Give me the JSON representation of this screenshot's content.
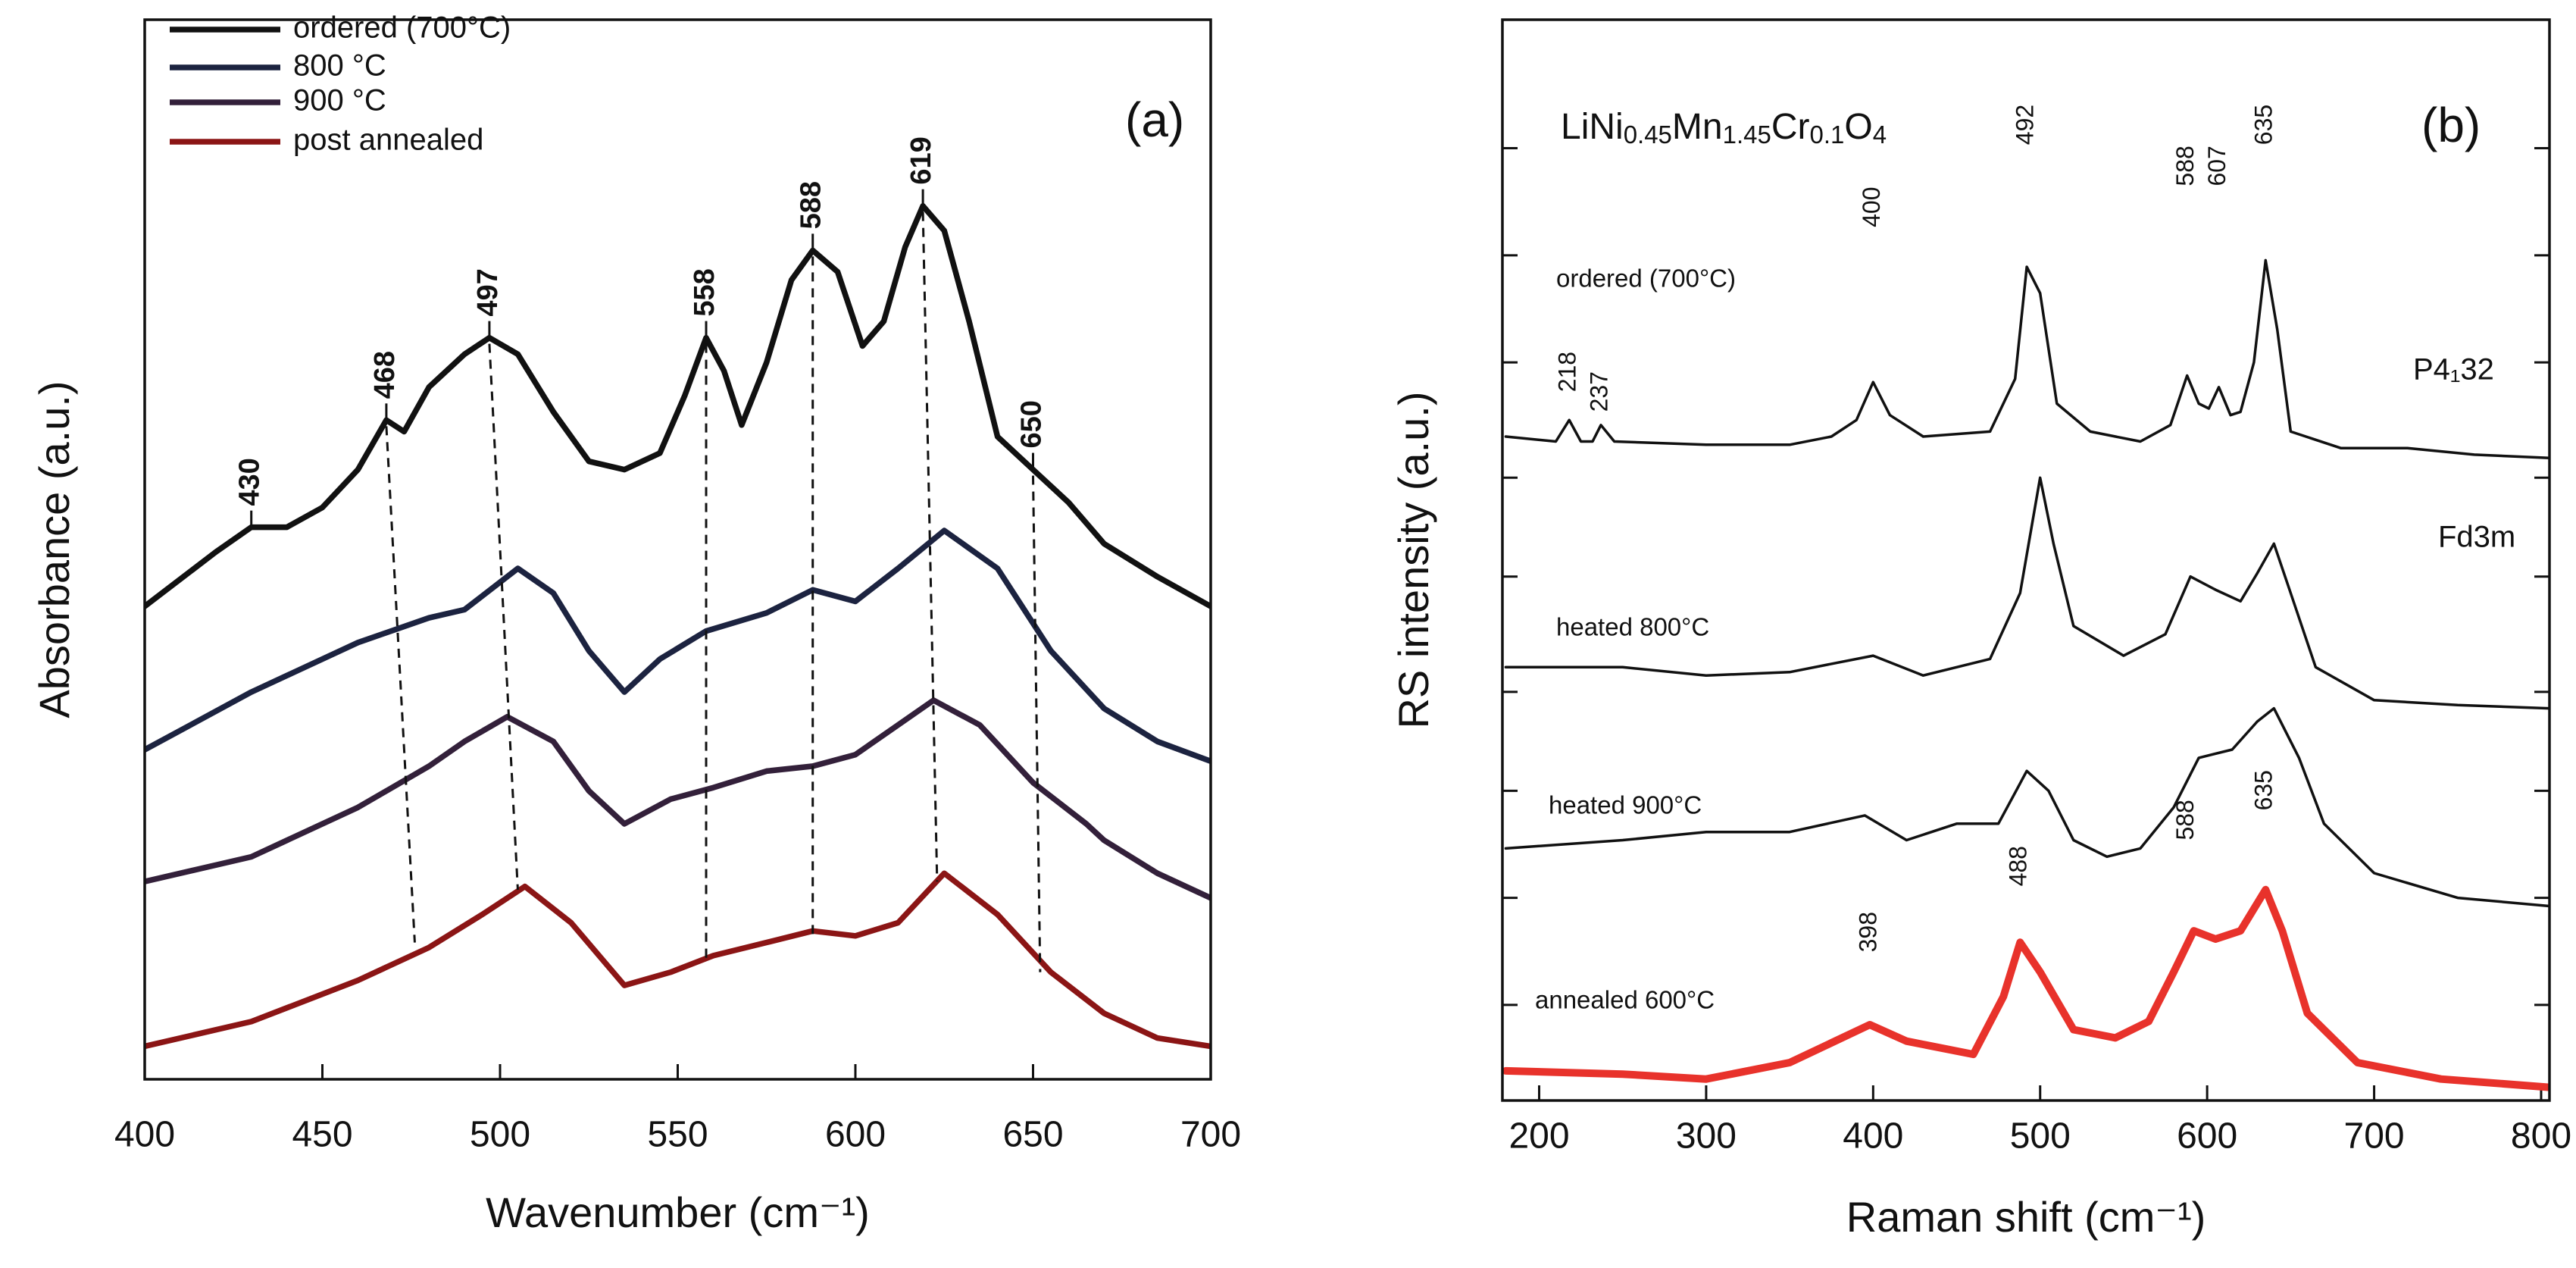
{
  "chart_data": [
    {
      "type": "line",
      "panel_label": "(a)",
      "xlabel": "Wavenumber (cm⁻¹)",
      "ylabel": "Absorbance (a.u.)",
      "xlim": [
        400,
        700
      ],
      "xticks": [
        400,
        450,
        500,
        550,
        600,
        650,
        700
      ],
      "ylim": [
        0,
        643
      ],
      "legend": "upper left",
      "series": [
        {
          "name": "ordered (700°C)",
          "color": "#111111",
          "x": [
            400,
            420,
            430,
            440,
            450,
            460,
            468,
            473,
            480,
            490,
            497,
            505,
            515,
            525,
            535,
            545,
            552,
            558,
            563,
            568,
            575,
            582,
            588,
            595,
            602,
            608,
            614,
            619,
            625,
            632,
            640,
            650,
            660,
            670,
            685,
            700
          ],
          "values": [
            287,
            320,
            335,
            335,
            347,
            370,
            400,
            393,
            420,
            440,
            450,
            440,
            405,
            375,
            370,
            380,
            415,
            450,
            430,
            397,
            435,
            485,
            503,
            490,
            445,
            460,
            505,
            530,
            515,
            460,
            390,
            370,
            350,
            325,
            305,
            287
          ]
        },
        {
          "name": "800 °C",
          "color": "#1c2340",
          "x": [
            400,
            430,
            460,
            480,
            490,
            505,
            515,
            525,
            535,
            545,
            558,
            575,
            588,
            600,
            612,
            625,
            640,
            655,
            670,
            685,
            700
          ],
          "values": [
            200,
            235,
            265,
            280,
            285,
            310,
            295,
            260,
            235,
            255,
            272,
            283,
            297,
            290,
            310,
            333,
            310,
            260,
            225,
            205,
            193
          ]
        },
        {
          "name": "900 °C",
          "color": "#33203a",
          "x": [
            400,
            430,
            460,
            480,
            490,
            502,
            515,
            525,
            535,
            548,
            560,
            575,
            588,
            600,
            612,
            622,
            635,
            650,
            665,
            670,
            685,
            700
          ],
          "values": [
            120,
            135,
            165,
            190,
            205,
            220,
            205,
            175,
            155,
            170,
            177,
            187,
            190,
            197,
            215,
            230,
            215,
            180,
            155,
            145,
            125,
            110
          ]
        },
        {
          "name": "post annealed",
          "color": "#8b1515",
          "x": [
            400,
            430,
            460,
            480,
            495,
            507,
            520,
            535,
            548,
            560,
            575,
            588,
            600,
            612,
            625,
            640,
            655,
            670,
            685,
            700
          ],
          "values": [
            20,
            35,
            60,
            80,
            100,
            117,
            95,
            57,
            65,
            75,
            83,
            90,
            87,
            95,
            125,
            100,
            65,
            40,
            25,
            20
          ]
        }
      ],
      "annotations": [
        {
          "x": 430,
          "y": 335
        },
        {
          "x": 468,
          "y": 400,
          "end": [
            476,
            83
          ]
        },
        {
          "x": 497,
          "y": 450,
          "end": [
            505,
            115
          ]
        },
        {
          "x": 558,
          "y": 450,
          "end": [
            558,
            70
          ]
        },
        {
          "x": 588,
          "y": 503,
          "end": [
            588,
            85
          ]
        },
        {
          "x": 619,
          "y": 530,
          "end": [
            623,
            120
          ]
        },
        {
          "x": 650,
          "y": 370,
          "end": [
            652,
            65
          ]
        }
      ]
    },
    {
      "type": "line",
      "panel_label": "(b)",
      "title": "LiNi0.45Mn1.45Cr0.1O4",
      "xlabel": "Raman shift (cm⁻¹)",
      "ylabel": "RS intensity (a.u.)",
      "xlim": [
        178,
        805
      ],
      "xticks": [
        200,
        300,
        400,
        500,
        600,
        700,
        800
      ],
      "ylim": [
        0,
        656
      ],
      "yticks": [
        578,
        513,
        448,
        378,
        318,
        248,
        188,
        123,
        58
      ],
      "ytick_labels": false,
      "legend": "inline",
      "series": [
        {
          "name": "ordered (700°C)",
          "color": "#111111",
          "x": [
            180,
            210,
            218,
            225,
            232,
            237,
            245,
            300,
            350,
            375,
            390,
            400,
            410,
            430,
            470,
            485,
            492,
            500,
            510,
            530,
            560,
            578,
            588,
            595,
            601,
            607,
            614,
            620,
            628,
            635,
            642,
            650,
            680,
            720,
            760,
            805
          ],
          "values": [
            403,
            400,
            413,
            400,
            400,
            410,
            400,
            398,
            398,
            403,
            413,
            436,
            416,
            403,
            406,
            438,
            506,
            490,
            423,
            406,
            400,
            410,
            440,
            423,
            420,
            433,
            416,
            418,
            448,
            510,
            468,
            406,
            396,
            396,
            392,
            390
          ]
        },
        {
          "name": "heated 800°C",
          "color": "#111111",
          "x": [
            180,
            250,
            300,
            350,
            400,
            430,
            470,
            488,
            500,
            508,
            520,
            550,
            575,
            590,
            605,
            620,
            630,
            640,
            650,
            665,
            700,
            750,
            805
          ],
          "values": [
            263,
            263,
            258,
            260,
            270,
            258,
            268,
            308,
            378,
            338,
            288,
            270,
            283,
            318,
            310,
            303,
            320,
            338,
            308,
            263,
            243,
            240,
            238
          ]
        },
        {
          "name": "heated 900°C",
          "color": "#111111",
          "x": [
            180,
            250,
            300,
            350,
            395,
            420,
            450,
            475,
            492,
            505,
            520,
            540,
            560,
            580,
            595,
            615,
            630,
            640,
            655,
            670,
            700,
            750,
            805
          ],
          "values": [
            153,
            158,
            163,
            163,
            173,
            158,
            168,
            168,
            200,
            188,
            158,
            148,
            153,
            178,
            208,
            213,
            230,
            238,
            208,
            168,
            138,
            123,
            118
          ]
        },
        {
          "name": "annealed 600°C",
          "color": "#e8322b",
          "x": [
            180,
            250,
            300,
            350,
            398,
            420,
            460,
            478,
            488,
            500,
            520,
            545,
            565,
            580,
            592,
            605,
            620,
            635,
            645,
            660,
            690,
            740,
            805
          ],
          "values": [
            18,
            16,
            13,
            23,
            46,
            36,
            28,
            63,
            96,
            78,
            43,
            38,
            48,
            78,
            103,
            98,
            103,
            128,
            103,
            53,
            23,
            13,
            8
          ]
        }
      ],
      "annotations": [
        {
          "x": 218,
          "y": 430
        },
        {
          "x": 237,
          "y": 418
        },
        {
          "x": 400,
          "y": 530
        },
        {
          "x": 492,
          "y": 580
        },
        {
          "x": 588,
          "y": 555
        },
        {
          "x": 607,
          "y": 555
        },
        {
          "x": 635,
          "y": 580
        },
        {
          "x": 398,
          "y": 90
        },
        {
          "x": 488,
          "y": 130
        },
        {
          "x": 588,
          "y": 158
        },
        {
          "x": 635,
          "y": 176
        }
      ],
      "notes": [
        "P4₁32",
        "Fd3m"
      ]
    }
  ]
}
